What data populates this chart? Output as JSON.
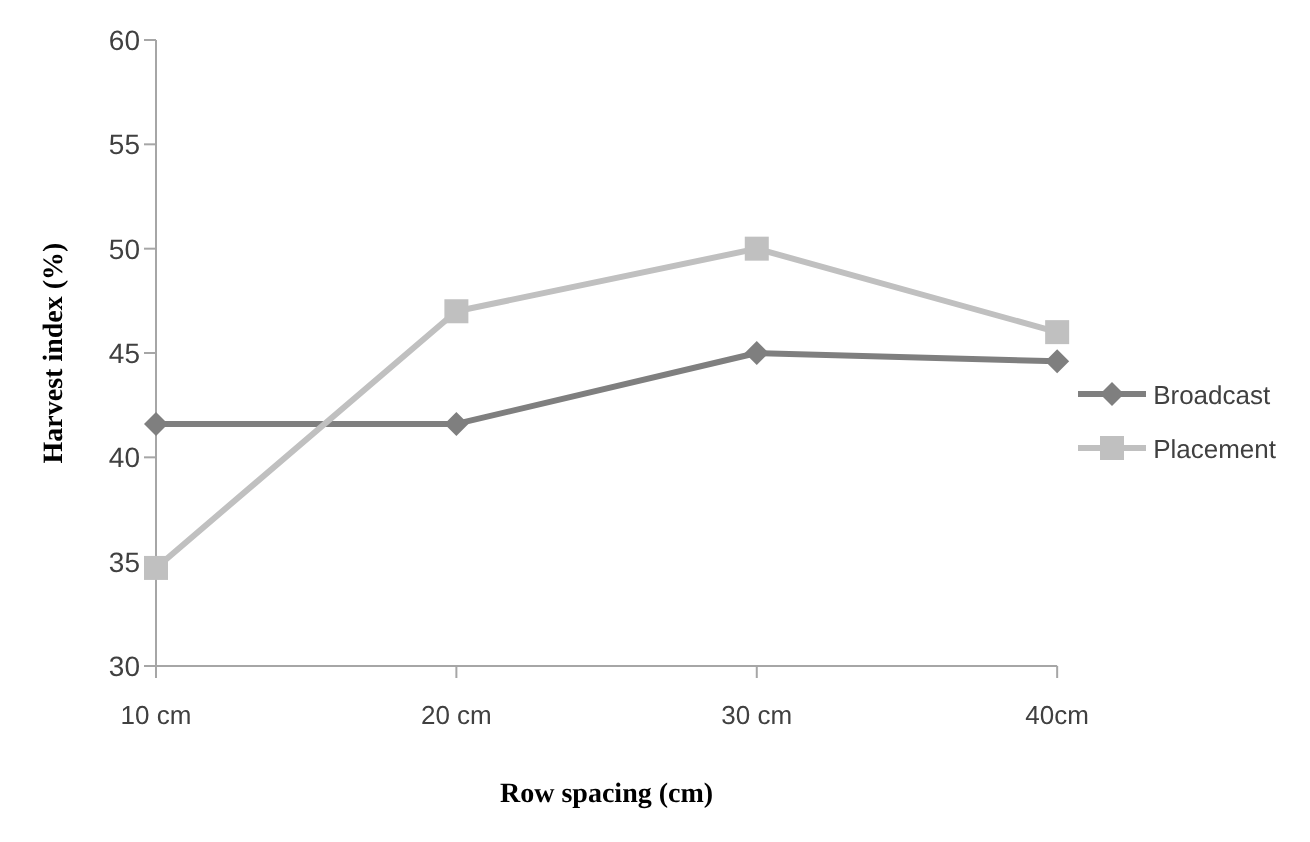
{
  "chart_data": {
    "type": "line",
    "xlabel": "Row spacing (cm)",
    "ylabel": "Harvest index (%)",
    "categories": [
      "10 cm",
      "20 cm",
      "30 cm",
      "40cm"
    ],
    "series": [
      {
        "name": "Broadcast",
        "color": "#7f7f7f",
        "marker": "diamond",
        "values": [
          41.6,
          41.6,
          45.0,
          44.6
        ]
      },
      {
        "name": "Placement",
        "color": "#c0c0c0",
        "marker": "square",
        "values": [
          34.7,
          47.0,
          50.0,
          46.0
        ]
      }
    ],
    "ylim": [
      30,
      60
    ],
    "yticks": [
      30,
      35,
      40,
      45,
      50,
      55,
      60
    ],
    "grid": false,
    "legend": "right"
  }
}
